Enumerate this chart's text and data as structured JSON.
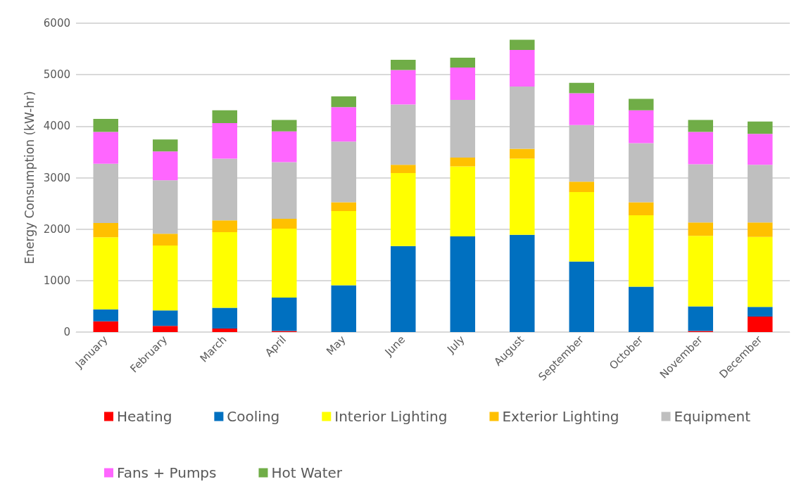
{
  "chart_data": {
    "type": "bar",
    "stacked": true,
    "ylabel": "Energy Consumption (kW-hr)",
    "categories": [
      "January",
      "February",
      "March",
      "April",
      "May",
      "June",
      "July",
      "August",
      "September",
      "October",
      "November",
      "December"
    ],
    "ylim": [
      0,
      6000
    ],
    "yticks": [
      0,
      1000,
      2000,
      3000,
      4000,
      5000,
      6000
    ],
    "grid": "y",
    "legend": "bottom",
    "series": [
      {
        "name": "Heating",
        "color": "#ff0000",
        "values": [
          210,
          120,
          70,
          20,
          0,
          0,
          0,
          0,
          0,
          0,
          20,
          300
        ]
      },
      {
        "name": "Cooling",
        "color": "#0070c0",
        "values": [
          230,
          300,
          400,
          650,
          910,
          1670,
          1860,
          1890,
          1370,
          880,
          480,
          190
        ]
      },
      {
        "name": "Interior Lighting",
        "color": "#ffff00",
        "values": [
          1400,
          1260,
          1470,
          1340,
          1440,
          1420,
          1360,
          1480,
          1350,
          1390,
          1370,
          1360
        ]
      },
      {
        "name": "Exterior Lighting",
        "color": "#ffc000",
        "values": [
          280,
          230,
          230,
          190,
          170,
          160,
          170,
          190,
          200,
          250,
          260,
          280
        ]
      },
      {
        "name": "Equipment",
        "color": "#bfbfbf",
        "values": [
          1150,
          1040,
          1200,
          1100,
          1180,
          1170,
          1120,
          1210,
          1100,
          1150,
          1130,
          1120
        ]
      },
      {
        "name": "Fans + Pumps",
        "color": "#ff66ff",
        "values": [
          620,
          560,
          690,
          600,
          670,
          670,
          630,
          710,
          620,
          640,
          630,
          600
        ]
      },
      {
        "name": "Hot Water",
        "color": "#70ad47",
        "values": [
          250,
          230,
          250,
          220,
          210,
          200,
          190,
          200,
          200,
          220,
          230,
          240
        ]
      }
    ]
  }
}
